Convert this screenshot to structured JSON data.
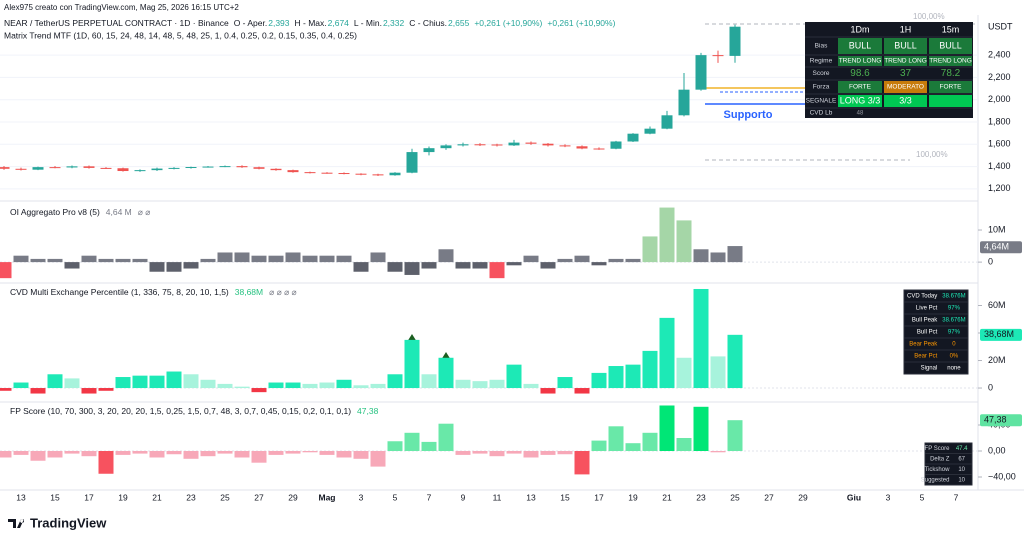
{
  "header": {
    "credit": "Alex975 creato con TradingView.com, Mag 25, 2026 16:15 UTC+2",
    "symbol": "NEAR / TetherUS PERPETUAL CONTRACT · 1D · Binance",
    "ohlc": [
      {
        "label": "O - Aper.",
        "value": "2,393"
      },
      {
        "label": "H - Max.",
        "value": "2,674"
      },
      {
        "label": "L - Min.",
        "value": "2,332"
      },
      {
        "label": "C - Chius.",
        "value": "2,655"
      }
    ],
    "change": "+0,261 (+10,90%)",
    "change2": "+0,261 (+10,90%)",
    "indicator": "Matrix Trend MTF (1D, 60, 15, 24, 48, 14, 48, 5, 48, 25, 1, 0.4, 0.25, 0.2, 0.15, 0.35, 0.4, 0.25)"
  },
  "price": {
    "type": "candlestick",
    "currency": "USDT",
    "ylim": [
      1100,
      2760
    ],
    "yticks": [
      {
        "value": 1200,
        "label": "1,200"
      },
      {
        "value": 1400,
        "label": "1,400"
      },
      {
        "value": 1600,
        "label": "1,600"
      },
      {
        "value": 1800,
        "label": "1,800"
      },
      {
        "value": 2000,
        "label": "2,000"
      },
      {
        "value": 2200,
        "label": "2,200"
      },
      {
        "value": 2400,
        "label": "2,400"
      }
    ],
    "grid": true,
    "up_color": "#26a69a",
    "down_color": "#ef5350",
    "open": [
      1395,
      1380,
      1372,
      1395,
      1392,
      1402,
      1388,
      1385,
      1360,
      1368,
      1382,
      1388,
      1396,
      1400,
      1404,
      1394,
      1380,
      1368,
      1350,
      1345,
      1342,
      1336,
      1330,
      1322,
      1345,
      1530,
      1565,
      1590,
      1600,
      1598,
      1590,
      1615,
      1605,
      1590,
      1582,
      1562,
      1560,
      1625,
      1695,
      1740,
      1860,
      2090,
      2400,
      2393
    ],
    "high": [
      1405,
      1390,
      1400,
      1405,
      1410,
      1410,
      1395,
      1390,
      1375,
      1390,
      1395,
      1400,
      1405,
      1410,
      1412,
      1400,
      1385,
      1372,
      1355,
      1350,
      1348,
      1340,
      1335,
      1350,
      1560,
      1580,
      1600,
      1615,
      1610,
      1605,
      1640,
      1625,
      1612,
      1600,
      1590,
      1572,
      1630,
      1700,
      1760,
      1900,
      2240,
      2420,
      2440,
      2674
    ],
    "low": [
      1370,
      1365,
      1368,
      1385,
      1385,
      1382,
      1378,
      1355,
      1352,
      1360,
      1375,
      1382,
      1390,
      1395,
      1388,
      1375,
      1362,
      1345,
      1338,
      1335,
      1330,
      1322,
      1315,
      1318,
      1340,
      1500,
      1550,
      1580,
      1585,
      1580,
      1585,
      1595,
      1580,
      1575,
      1555,
      1550,
      1555,
      1620,
      1690,
      1735,
      1850,
      2080,
      2330,
      2332
    ],
    "close": [
      1380,
      1372,
      1395,
      1392,
      1402,
      1388,
      1385,
      1360,
      1368,
      1382,
      1388,
      1396,
      1400,
      1404,
      1394,
      1380,
      1368,
      1350,
      1345,
      1342,
      1336,
      1330,
      1322,
      1345,
      1530,
      1565,
      1590,
      1600,
      1598,
      1590,
      1615,
      1605,
      1590,
      1582,
      1562,
      1560,
      1625,
      1695,
      1740,
      1860,
      2090,
      2400,
      2393,
      2655
    ],
    "annotations": {
      "support": "Supporto",
      "level_top": "100,00%",
      "level_mid": "100,00%"
    }
  },
  "trend_table": {
    "header": [
      "1Dm",
      "1H",
      "15m"
    ],
    "rows": [
      [
        "Bias",
        "BULL",
        "BULL",
        "BULL"
      ],
      [
        "Regime",
        "TREND LONG",
        "TREND LONG",
        "TREND LONG"
      ],
      [
        "Score",
        "98.6",
        "37",
        "78.2"
      ],
      [
        "Forza",
        "FORTE",
        "MODERATO",
        "FORTE"
      ],
      [
        "SEGNALE",
        "LONG 3/3",
        "3/3"
      ],
      [
        "CVD Lb",
        "48"
      ]
    ]
  },
  "oi": {
    "type": "bar",
    "legend": "OI Aggregato Pro v8 (5)",
    "legend_value": "4,64 M",
    "legend_icons": "⌀  ⌀",
    "ylim": [
      -6.2,
      17.8
    ],
    "yticks": [
      0,
      {
        "value": 10,
        "label": "10M"
      }
    ],
    "last": {
      "value": 4.64,
      "label": "4,64M"
    },
    "values": [
      -5,
      2,
      1,
      1,
      -2,
      2,
      1,
      1,
      1,
      -3,
      -3,
      -2,
      1,
      3,
      3,
      2,
      2,
      3,
      2,
      2,
      2,
      -3,
      3,
      -3,
      -4,
      -2,
      4,
      -2,
      -2,
      -5,
      -1,
      2,
      -2,
      1,
      2,
      -1,
      1,
      1,
      8,
      17,
      13,
      4,
      3,
      5
    ],
    "colors": [
      "#f7525f",
      "#787b86",
      "#787b86",
      "#787b86",
      "#5d606b",
      "#787b86",
      "#787b86",
      "#787b86",
      "#787b86",
      "#5d606b",
      "#5d606b",
      "#5d606b",
      "#787b86",
      "#787b86",
      "#787b86",
      "#787b86",
      "#787b86",
      "#787b86",
      "#787b86",
      "#787b86",
      "#787b86",
      "#5d606b",
      "#787b86",
      "#5d606b",
      "#5d606b",
      "#5d606b",
      "#787b86",
      "#5d606b",
      "#5d606b",
      "#f7525f",
      "#5d606b",
      "#787b86",
      "#5d606b",
      "#787b86",
      "#787b86",
      "#5d606b",
      "#787b86",
      "#787b86",
      "#a5d6a7",
      "#a5d6a7",
      "#a5d6a7",
      "#787b86",
      "#787b86",
      "#787b86"
    ]
  },
  "cvd": {
    "type": "bar",
    "legend": "CVD Multi Exchange Percentile (1, 336, 75, 8, 20, 10, 1,5)",
    "legend_value": "38,68M",
    "legend_icons": "⌀  ⌀  ⌀  ⌀",
    "ylim": [
      -8.7,
      74.9
    ],
    "yticks": [
      0,
      {
        "value": 20,
        "label": "20M"
      },
      {
        "value": 40,
        "label": "40M"
      },
      {
        "value": 60,
        "label": "60M"
      }
    ],
    "last": {
      "value": 38.68,
      "label": "38,68M"
    },
    "values": [
      -2,
      4,
      -4,
      10,
      7,
      -4,
      -2,
      8,
      9,
      9,
      12,
      10,
      6,
      3,
      1,
      -3,
      4,
      4,
      3,
      4,
      6,
      2,
      3,
      10,
      35,
      10,
      22,
      6,
      5,
      6,
      17,
      3,
      -4,
      8,
      -4,
      11,
      16,
      17,
      27,
      51,
      22,
      72,
      23,
      38.68
    ],
    "colors": [
      "#f23645",
      "#1de9b6",
      "#f23645",
      "#1de9b6",
      "#a7f3dc",
      "#f23645",
      "#f23645",
      "#1de9b6",
      "#1de9b6",
      "#1de9b6",
      "#1de9b6",
      "#a7f3dc",
      "#a7f3dc",
      "#a7f3dc",
      "#a7f3dc",
      "#f23645",
      "#1de9b6",
      "#1de9b6",
      "#a7f3dc",
      "#a7f3dc",
      "#1de9b6",
      "#a7f3dc",
      "#a7f3dc",
      "#1de9b6",
      "#1de9b6",
      "#a7f3dc",
      "#1de9b6",
      "#a7f3dc",
      "#a7f3dc",
      "#a7f3dc",
      "#1de9b6",
      "#a7f3dc",
      "#f23645",
      "#1de9b6",
      "#f23645",
      "#1de9b6",
      "#1de9b6",
      "#1de9b6",
      "#1de9b6",
      "#1de9b6",
      "#a7f3dc",
      "#1de9b6",
      "#a7f3dc",
      "#1de9b6"
    ],
    "table": [
      [
        "CVD Today",
        "38.676M"
      ],
      [
        "Live Pct",
        "97%"
      ],
      [
        "Bull Peak",
        "38.676M"
      ],
      [
        "Bull Pct",
        "97%"
      ],
      [
        "Bear Peak",
        "0"
      ],
      [
        "Bear Pct",
        "0%"
      ],
      [
        "Signal",
        "none"
      ]
    ]
  },
  "fp": {
    "type": "bar",
    "legend": "FP Score (10, 70, 300, 3, 20, 20, 20, 1,5, 0,25, 1,5, 0,7, 48, 3, 0,7, 0,45, 0,15, 0,2, 0,1, 0,1)",
    "legend_value": "47,38",
    "ylim": [
      -60,
      72.3
    ],
    "yticks": [
      {
        "value": 40,
        "label": "40,00"
      },
      {
        "value": 0,
        "label": "0,00"
      },
      {
        "value": -40,
        "label": "−40,00"
      }
    ],
    "last": {
      "value": 47.38,
      "label": "47,38"
    },
    "values": [
      -10,
      -6,
      -15,
      -10,
      -4,
      -8,
      -35,
      -6,
      -4,
      -10,
      -5,
      -12,
      -8,
      -4,
      -10,
      -18,
      -6,
      -4,
      -2,
      -6,
      -10,
      -12,
      -24,
      15,
      28,
      14,
      42,
      -6,
      -4,
      -8,
      -4,
      -10,
      -6,
      -5,
      -36,
      16,
      38,
      12,
      28,
      70,
      20,
      68,
      -2,
      47.38
    ],
    "table": [
      [
        "FP Score",
        "47.4"
      ],
      [
        "Delta Z",
        "67"
      ],
      [
        "Tickshow",
        "10"
      ],
      [
        "Suggested",
        "10"
      ]
    ]
  },
  "time_axis": [
    "13",
    "15",
    "17",
    "19",
    "21",
    "23",
    "25",
    "27",
    "29",
    "Mag",
    "3",
    "5",
    "7",
    "9",
    "11",
    "13",
    "15",
    "17",
    "19",
    "21",
    "23",
    "25",
    "27",
    "29",
    "Giu",
    "3",
    "5",
    "7"
  ],
  "brand": "TradingView"
}
